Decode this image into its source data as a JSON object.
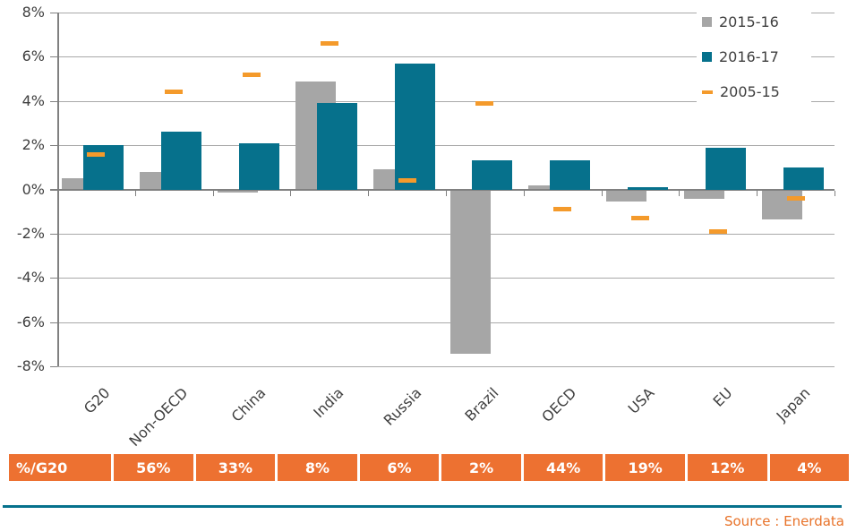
{
  "chart_data": {
    "type": "bar",
    "title": "",
    "categories": [
      "G20",
      "Non-OECD",
      "China",
      "India",
      "Russia",
      "Brazil",
      "OECD",
      "USA",
      "EU",
      "Japan"
    ],
    "series": [
      {
        "name": "2015-16",
        "render": "bar",
        "color_key": "gray",
        "values": [
          0.5,
          0.8,
          -0.1,
          4.9,
          0.9,
          -7.4,
          0.2,
          -0.5,
          -0.4,
          -1.3
        ]
      },
      {
        "name": "2016-17",
        "render": "bar",
        "color_key": "teal",
        "values": [
          2.0,
          2.6,
          2.1,
          3.9,
          5.7,
          1.3,
          1.3,
          0.1,
          1.9,
          1.0
        ]
      },
      {
        "name": "2005-15",
        "render": "marker",
        "color_key": "orange",
        "values": [
          1.6,
          4.4,
          5.2,
          6.6,
          0.4,
          3.9,
          -0.9,
          -1.3,
          -1.9,
          -0.4
        ]
      }
    ],
    "ylim": [
      -8,
      8
    ],
    "ytick_step": 2,
    "ytick_labels": [
      "8%",
      "6%",
      "4%",
      "2%",
      "0%",
      "-2%",
      "-4%",
      "-6%",
      "-8%"
    ],
    "grid": true,
    "legend_position": "top-right"
  },
  "share_table": {
    "header": "%/G20",
    "values": [
      "56%",
      "33%",
      "8%",
      "6%",
      "2%",
      "44%",
      "19%",
      "12%",
      "4%"
    ]
  },
  "source": {
    "label": "Source : Enerdata"
  },
  "colors": {
    "gray": "#A6A6A6",
    "teal": "#06718C",
    "orange": "#F49A2B",
    "table_orange": "#ED7131",
    "grid": "#A9A9A9",
    "axis": "#808080",
    "text": "#3F3F3F",
    "source_text": "#E8732A",
    "divider": "#06718C"
  }
}
